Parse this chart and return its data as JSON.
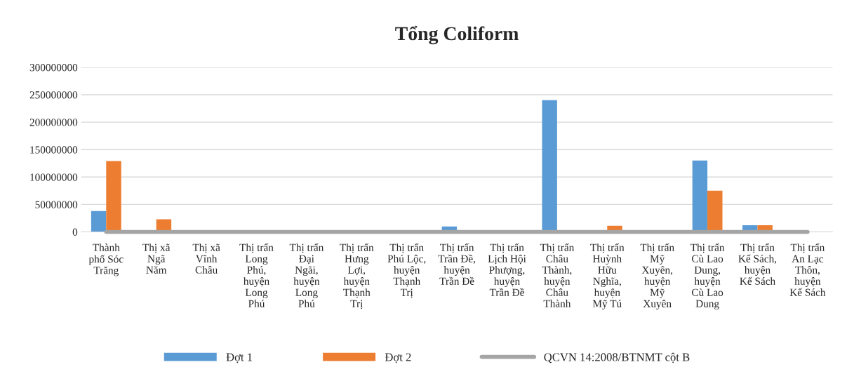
{
  "chart_data": {
    "type": "bar",
    "title": "Tổng Coliform",
    "categories": [
      "Thành\nphố Sóc\nTrăng",
      "Thị xã\nNgã\nNăm",
      "Thị xã\nVĩnh\nChâu",
      "Thị trấn\nLong\nPhú,\nhuyện\nLong\nPhú",
      "Thị trấn\nĐại\nNgãi,\nhuyện\nLong\nPhú",
      "Thị trấn\nHưng\nLợi,\nhuyện\nThạnh\nTrị",
      "Thị trấn\nPhú Lộc,\nhuyện\nThạnh\nTrị",
      "Thị trấn\nTrần Đề,\nhuyện\nTrần Đề",
      "Thị trấn\nLịch Hội\nPhượng,\nhuyện\nTrần Đề",
      "Thị trấn\nChâu\nThành,\nhuyện\nChâu\nThành",
      "Thị trấn\nHuỳnh\nHữu\nNghĩa,\nhuyện\nMỹ Tú",
      "Thị trấn\nMỹ\nXuyên,\nhuyện\nMỹ\nXuyên",
      "Thị trấn\nCù Lao\nDung,\nhuyện\nCù Lao\nDung",
      "Thị trấn\nKế Sách,\nhuyện\nKế Sách",
      "Thị trấn\nAn Lạc\nThôn,\nhuyện\nKế Sách"
    ],
    "series": [
      {
        "name": "Đợt 1",
        "color": "#5b9bd5",
        "values": [
          38000000,
          null,
          null,
          null,
          null,
          null,
          null,
          10000000,
          null,
          240000000,
          null,
          null,
          130000000,
          12000000,
          null
        ]
      },
      {
        "name": "Đợt 2",
        "color": "#ed7d31",
        "values": [
          129000000,
          23000000,
          null,
          null,
          null,
          null,
          null,
          null,
          null,
          null,
          11000000,
          null,
          75000000,
          12000000,
          null
        ]
      },
      {
        "name": "QCVN 14:2008/BTNMT cột B",
        "type": "line",
        "color": "#a5a5a5",
        "values": [
          0,
          0,
          0,
          0,
          0,
          0,
          0,
          0,
          0,
          0,
          0,
          0,
          0,
          0,
          0
        ]
      }
    ],
    "ylim": [
      0,
      300000000
    ],
    "yticks": [
      0,
      50000000,
      100000000,
      150000000,
      200000000,
      250000000,
      300000000
    ],
    "grid": "y",
    "legend": "bottom"
  }
}
